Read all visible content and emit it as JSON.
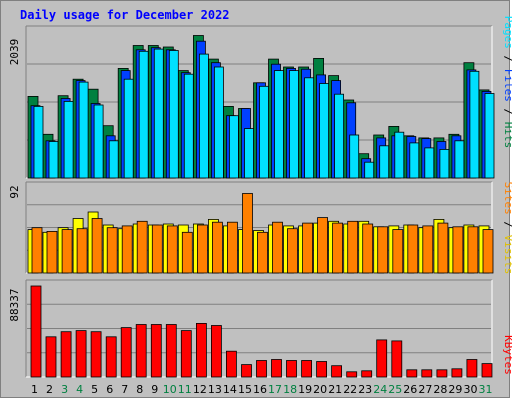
{
  "title": "Daily usage for December 2022",
  "colors": {
    "hits": "#008040",
    "files": "#0040ff",
    "pages": "#00e0ff",
    "visits": "#ffff00",
    "sites": "#ff8000",
    "kbytes": "#ff0000",
    "weekend_day": "#008040",
    "weekday_day": "#000000",
    "title": "#0000ff"
  },
  "chart_data": [
    {
      "type": "bar",
      "panel": "hits-files-pages",
      "ymax_label": "2039",
      "ylim": [
        0,
        2039
      ],
      "grid": true,
      "side_label": {
        "pages": "Pages",
        "sep1": " / ",
        "files": "Files",
        "sep2": " / ",
        "hits": "Hits"
      },
      "categories": [
        "1",
        "2",
        "3",
        "4",
        "5",
        "6",
        "7",
        "8",
        "9",
        "10",
        "11",
        "12",
        "13",
        "14",
        "15",
        "16",
        "17",
        "18",
        "19",
        "20",
        "21",
        "22",
        "23",
        "24",
        "25",
        "26",
        "27",
        "28",
        "29",
        "30",
        "31"
      ],
      "series": [
        {
          "name": "Hits",
          "values": [
            1140,
            610,
            1150,
            1380,
            1240,
            730,
            1530,
            1850,
            1850,
            1830,
            1500,
            1990,
            1660,
            1000,
            970,
            1330,
            1660,
            1550,
            1550,
            1670,
            1430,
            1090,
            340,
            600,
            720,
            590,
            560,
            560,
            610,
            1610,
            1230
          ]
        },
        {
          "name": "Files",
          "values": [
            1010,
            520,
            1110,
            1360,
            1040,
            590,
            1500,
            1790,
            1820,
            1790,
            1470,
            1910,
            1610,
            870,
            970,
            1330,
            1590,
            1530,
            1520,
            1440,
            1360,
            1050,
            270,
            560,
            590,
            580,
            550,
            510,
            590,
            1510,
            1210
          ]
        },
        {
          "name": "Pages",
          "values": [
            1000,
            510,
            1070,
            1340,
            1020,
            520,
            1380,
            1770,
            1800,
            1780,
            1450,
            1730,
            1550,
            870,
            690,
            1280,
            1500,
            1500,
            1400,
            1320,
            1170,
            600,
            220,
            450,
            640,
            490,
            420,
            400,
            520,
            1490,
            1180
          ]
        }
      ]
    },
    {
      "type": "bar",
      "panel": "visits-sites",
      "ymax_label": "92",
      "ylim": [
        0,
        92
      ],
      "grid": true,
      "side_label": {
        "sites": "Sites",
        "sep": " / ",
        "visits": "Visits"
      },
      "categories": [
        "1",
        "2",
        "3",
        "4",
        "5",
        "6",
        "7",
        "8",
        "9",
        "10",
        "11",
        "12",
        "13",
        "14",
        "15",
        "16",
        "17",
        "18",
        "19",
        "20",
        "21",
        "22",
        "23",
        "24",
        "25",
        "26",
        "27",
        "28",
        "29",
        "30",
        "31"
      ],
      "series": [
        {
          "name": "Visits",
          "values": [
            47,
            44,
            49,
            59,
            66,
            52,
            48,
            53,
            52,
            53,
            52,
            53,
            58,
            51,
            47,
            46,
            52,
            51,
            51,
            54,
            56,
            53,
            56,
            50,
            51,
            52,
            49,
            58,
            49,
            52,
            51
          ]
        },
        {
          "name": "Sites",
          "values": [
            49,
            45,
            47,
            48,
            59,
            49,
            51,
            56,
            52,
            51,
            44,
            52,
            55,
            55,
            86,
            44,
            55,
            48,
            54,
            60,
            54,
            56,
            53,
            50,
            47,
            52,
            51,
            54,
            50,
            50,
            47
          ]
        }
      ]
    },
    {
      "type": "bar",
      "panel": "kbytes",
      "ymax_label": "88337",
      "ylim": [
        0,
        88337
      ],
      "grid": true,
      "side_label": {
        "kbytes": "KBytes"
      },
      "categories": [
        "1",
        "2",
        "3",
        "4",
        "5",
        "6",
        "7",
        "8",
        "9",
        "10",
        "11",
        "12",
        "13",
        "14",
        "15",
        "16",
        "17",
        "18",
        "19",
        "20",
        "21",
        "22",
        "23",
        "24",
        "25",
        "26",
        "27",
        "28",
        "29",
        "30",
        "31"
      ],
      "series": [
        {
          "name": "KBytes",
          "values": [
            88337,
            39000,
            44000,
            45000,
            44000,
            39000,
            48000,
            51000,
            51000,
            51000,
            45000,
            52000,
            50000,
            25000,
            12000,
            16000,
            17000,
            16000,
            16000,
            15000,
            11000,
            5000,
            6000,
            36000,
            35000,
            7000,
            7000,
            7000,
            8000,
            17000,
            13000
          ]
        }
      ]
    }
  ],
  "weekend_days": [
    "3",
    "4",
    "10",
    "11",
    "17",
    "18",
    "24",
    "25",
    "31"
  ]
}
